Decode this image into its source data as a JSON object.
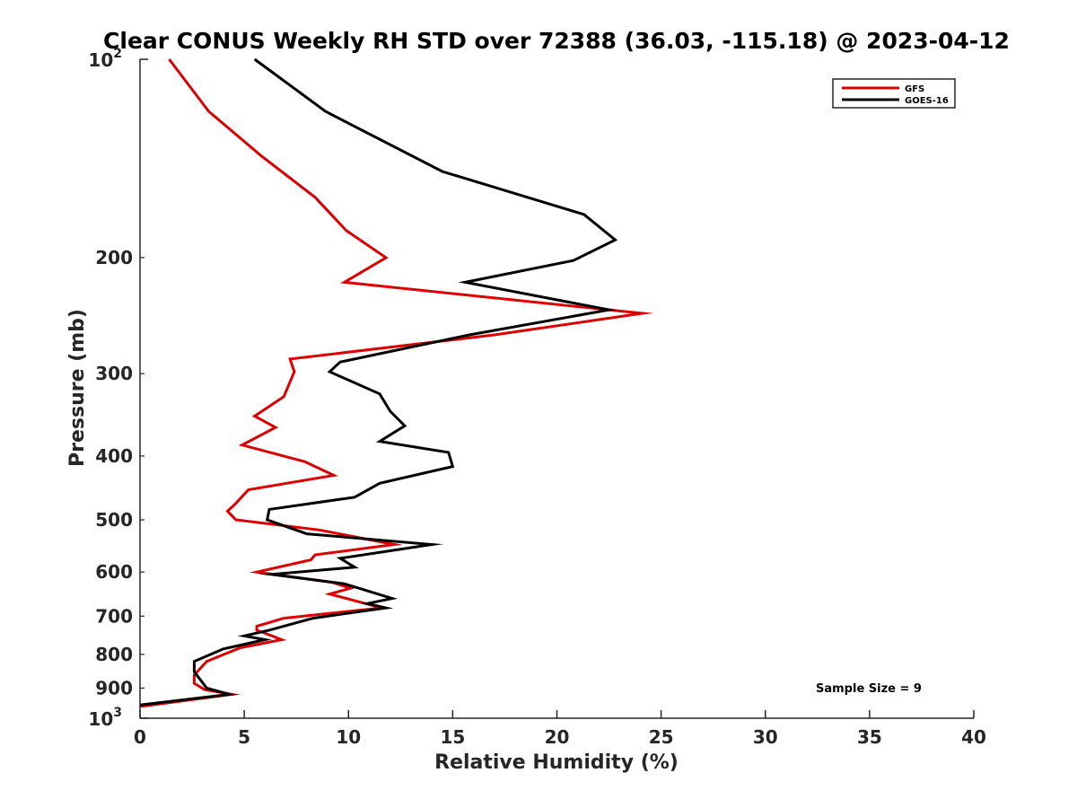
{
  "chart_data": {
    "type": "line",
    "title": "Clear CONUS Weekly RH STD over 72388 (36.03, -115.18) @ 2023-04-12",
    "xlabel": "Relative Humidity (%)",
    "ylabel": "Pressure (mb)",
    "xlim": [
      0,
      40
    ],
    "ylim": [
      100,
      1000
    ],
    "y_scale": "log",
    "y_reversed": true,
    "x_ticks": [
      "0",
      "5",
      "10",
      "15",
      "20",
      "25",
      "30",
      "35",
      "40"
    ],
    "x_tick_values": [
      0,
      5,
      10,
      15,
      20,
      25,
      30,
      35,
      40
    ],
    "y_ticks": [
      {
        "value": 200,
        "label": "200"
      },
      {
        "value": 300,
        "label": "300"
      },
      {
        "value": 400,
        "label": "400"
      },
      {
        "value": 500,
        "label": "500"
      },
      {
        "value": 600,
        "label": "600"
      },
      {
        "value": 700,
        "label": "700"
      },
      {
        "value": 800,
        "label": "800"
      },
      {
        "value": 900,
        "label": "900"
      }
    ],
    "y_limit_labels": [
      {
        "value": 100,
        "base": "10",
        "exp": "2"
      },
      {
        "value": 1000,
        "base": "10",
        "exp": "3"
      }
    ],
    "legend_position": "top-right",
    "grid": false,
    "annotation": "Sample Size = 9",
    "series": [
      {
        "name": "GFS",
        "color": "#dd0000",
        "points": [
          [
            1.4,
            100
          ],
          [
            3.3,
            120
          ],
          [
            5.8,
            140
          ],
          [
            8.4,
            162
          ],
          [
            9.9,
            182
          ],
          [
            11.8,
            200
          ],
          [
            9.8,
            218
          ],
          [
            24.1,
            243
          ],
          [
            17.0,
            262
          ],
          [
            7.2,
            285
          ],
          [
            7.4,
            298
          ],
          [
            6.9,
            325
          ],
          [
            5.5,
            348
          ],
          [
            6.5,
            362
          ],
          [
            4.9,
            385
          ],
          [
            7.9,
            408
          ],
          [
            9.3,
            428
          ],
          [
            5.2,
            450
          ],
          [
            4.6,
            472
          ],
          [
            4.2,
            485
          ],
          [
            4.6,
            500
          ],
          [
            8.6,
            518
          ],
          [
            12.2,
            545
          ],
          [
            8.4,
            565
          ],
          [
            8.2,
            575
          ],
          [
            5.6,
            600
          ],
          [
            9.2,
            622
          ],
          [
            10.1,
            635
          ],
          [
            9.1,
            648
          ],
          [
            11.6,
            680
          ],
          [
            6.9,
            705
          ],
          [
            5.6,
            725
          ],
          [
            5.6,
            735
          ],
          [
            6.8,
            760
          ],
          [
            4.8,
            782
          ],
          [
            3.2,
            820
          ],
          [
            2.6,
            860
          ],
          [
            2.6,
            885
          ],
          [
            3.1,
            905
          ],
          [
            4.4,
            920
          ],
          [
            0.0,
            960
          ]
        ]
      },
      {
        "name": "GOES-16",
        "color": "#000000",
        "points": [
          [
            5.5,
            100
          ],
          [
            8.9,
            120
          ],
          [
            14.5,
            148
          ],
          [
            21.3,
            172
          ],
          [
            22.8,
            188
          ],
          [
            20.8,
            202
          ],
          [
            15.6,
            218
          ],
          [
            22.5,
            240
          ],
          [
            15.8,
            262
          ],
          [
            9.6,
            288
          ],
          [
            9.1,
            298
          ],
          [
            11.5,
            322
          ],
          [
            12.0,
            342
          ],
          [
            12.7,
            360
          ],
          [
            11.5,
            380
          ],
          [
            14.8,
            395
          ],
          [
            15.0,
            415
          ],
          [
            11.5,
            440
          ],
          [
            10.3,
            462
          ],
          [
            6.2,
            482
          ],
          [
            6.1,
            500
          ],
          [
            8.0,
            525
          ],
          [
            14.0,
            545
          ],
          [
            9.6,
            572
          ],
          [
            10.3,
            590
          ],
          [
            6.3,
            605
          ],
          [
            9.8,
            625
          ],
          [
            12.1,
            658
          ],
          [
            10.9,
            670
          ],
          [
            11.8,
            680
          ],
          [
            8.3,
            705
          ],
          [
            6.2,
            735
          ],
          [
            5.0,
            750
          ],
          [
            6.0,
            760
          ],
          [
            4.0,
            785
          ],
          [
            2.6,
            820
          ],
          [
            2.6,
            850
          ],
          [
            3.2,
            900
          ],
          [
            4.3,
            920
          ],
          [
            0.0,
            955
          ]
        ]
      }
    ]
  }
}
